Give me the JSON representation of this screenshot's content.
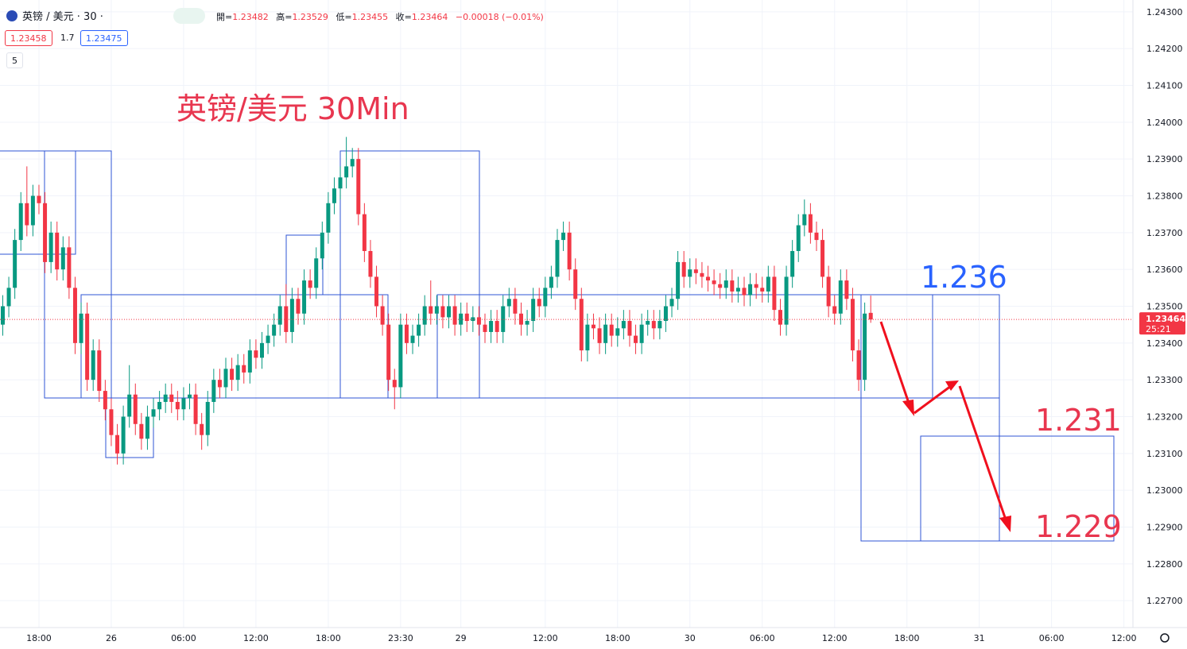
{
  "header": {
    "symbol": "英镑 / 美元 · 30 ·",
    "ohlc_labels": [
      "開=",
      "高=",
      "低=",
      "收="
    ],
    "change": "−0.00018 (−0.01%)",
    "sell": "1.23458",
    "spread": "1.7",
    "buy": "1.23475",
    "indicator_count": "5"
  },
  "chart_data": {
    "type": "candlestick",
    "up_color": "#089981",
    "down_color": "#f23645",
    "grid": true,
    "xlim": [
      -0.46,
      187.5
    ],
    "xticks": [
      {
        "value": 6,
        "label": "18:00"
      },
      {
        "value": 18,
        "label": "26"
      },
      {
        "value": 30,
        "label": "06:00"
      },
      {
        "value": 42,
        "label": "12:00"
      },
      {
        "value": 54,
        "label": "18:00"
      },
      {
        "value": 66,
        "label": "23:30"
      },
      {
        "value": 76,
        "label": "29"
      },
      {
        "value": 90,
        "label": "12:00"
      },
      {
        "value": 102,
        "label": "18:00"
      },
      {
        "value": 114,
        "label": "30"
      },
      {
        "value": 126,
        "label": "06:00"
      },
      {
        "value": 138,
        "label": "12:00"
      },
      {
        "value": 150,
        "label": "18:00"
      },
      {
        "value": 162,
        "label": "31"
      },
      {
        "value": 174,
        "label": "06:00"
      },
      {
        "value": 186,
        "label": "12:00"
      }
    ],
    "ylim": [
      1.22627,
      1.24332
    ],
    "yticks": [
      {
        "value": 1.227,
        "label": "1.22700"
      },
      {
        "value": 1.228,
        "label": "1.22800"
      },
      {
        "value": 1.229,
        "label": "1.22900"
      },
      {
        "value": 1.23,
        "label": "1.23000"
      },
      {
        "value": 1.231,
        "label": "1.23100"
      },
      {
        "value": 1.232,
        "label": "1.23200"
      },
      {
        "value": 1.233,
        "label": "1.23300"
      },
      {
        "value": 1.234,
        "label": "1.23400"
      },
      {
        "value": 1.235,
        "label": "1.23500"
      },
      {
        "value": 1.236,
        "label": "1.23600"
      },
      {
        "value": 1.237,
        "label": "1.23700"
      },
      {
        "value": 1.238,
        "label": "1.23800"
      },
      {
        "value": 1.239,
        "label": "1.23900"
      },
      {
        "value": 1.24,
        "label": "1.24000"
      },
      {
        "value": 1.241,
        "label": "1.24100"
      },
      {
        "value": 1.242,
        "label": "1.24200"
      },
      {
        "value": 1.243,
        "label": "1.24300"
      }
    ],
    "open": [
      1.2345,
      1.235,
      1.2355,
      1.2368,
      1.2378,
      1.2372,
      1.238,
      1.2378,
      1.2362,
      1.237,
      1.236,
      1.2366,
      1.2355,
      1.234,
      1.2348,
      1.233,
      1.2338,
      1.2327,
      1.2322,
      1.2315,
      1.231,
      1.232,
      1.2326,
      1.2318,
      1.2314,
      1.232,
      1.2322,
      1.2324,
      1.2326,
      1.2324,
      1.2322,
      1.2325,
      1.2326,
      1.2318,
      1.2315,
      1.2324,
      1.233,
      1.2328,
      1.2333,
      1.233,
      1.2334,
      1.2332,
      1.2338,
      1.2336,
      1.234,
      1.2342,
      1.2345,
      1.235,
      1.2343,
      1.2352,
      1.2348,
      1.2357,
      1.2355,
      1.2363,
      1.237,
      1.2378,
      1.2382,
      1.2385,
      1.2388,
      1.239,
      1.2375,
      1.2365,
      1.2358,
      1.235,
      1.2345,
      1.233,
      1.2328,
      1.2345,
      1.234,
      1.2342,
      1.2345,
      1.235,
      1.2348,
      1.235,
      1.2347,
      1.235,
      1.2345,
      1.2348,
      1.2346,
      1.2347,
      1.2345,
      1.2343,
      1.2346,
      1.2343,
      1.235,
      1.2352,
      1.2348,
      1.2345,
      1.2346,
      1.2352,
      1.235,
      1.2355,
      1.2358,
      1.2368,
      1.237,
      1.236,
      1.2352,
      1.2338,
      1.2345,
      1.2344,
      1.234,
      1.2345,
      1.2342,
      1.2344,
      1.2346,
      1.2342,
      1.234,
      1.2345,
      1.2346,
      1.2344,
      1.2346,
      1.235,
      1.2352,
      1.2362,
      1.2358,
      1.236,
      1.2359,
      1.2358,
      1.2357,
      1.2356,
      1.2355,
      1.2357,
      1.2354,
      1.2355,
      1.2353,
      1.2356,
      1.2355,
      1.2354,
      1.2358,
      1.2349,
      1.2345,
      1.2358,
      1.2365,
      1.2372,
      1.2375,
      1.237,
      1.2368,
      1.2358,
      1.235,
      1.2348,
      1.2357,
      1.2352,
      1.2338,
      1.233,
      1.23482
    ],
    "high": [
      1.2353,
      1.2358,
      1.2371,
      1.2381,
      1.2388,
      1.2383,
      1.2383,
      1.2381,
      1.2373,
      1.2373,
      1.2369,
      1.2369,
      1.2358,
      1.2351,
      1.2351,
      1.2341,
      1.2341,
      1.233,
      1.2325,
      1.2318,
      1.2323,
      1.2334,
      1.2329,
      1.2321,
      1.2323,
      1.2325,
      1.2327,
      1.2329,
      1.2329,
      1.2327,
      1.2328,
      1.2329,
      1.2329,
      1.2321,
      1.2327,
      1.2333,
      1.2333,
      1.2336,
      1.2336,
      1.2337,
      1.2337,
      1.2341,
      1.2341,
      1.2343,
      1.2345,
      1.2348,
      1.2353,
      1.2356,
      1.2355,
      1.2355,
      1.236,
      1.236,
      1.2366,
      1.2373,
      1.2381,
      1.2385,
      1.2388,
      1.2396,
      1.2393,
      1.2393,
      1.2378,
      1.2368,
      1.2361,
      1.2353,
      1.2348,
      1.2333,
      1.2348,
      1.2348,
      1.2345,
      1.2348,
      1.2353,
      1.2357,
      1.2353,
      1.2353,
      1.2353,
      1.2353,
      1.2351,
      1.2351,
      1.235,
      1.235,
      1.2348,
      1.2349,
      1.2349,
      1.2353,
      1.2355,
      1.2355,
      1.2351,
      1.2349,
      1.2355,
      1.2355,
      1.2358,
      1.2361,
      1.2371,
      1.2373,
      1.2373,
      1.2363,
      1.2355,
      1.2348,
      1.2348,
      1.2347,
      1.2348,
      1.2348,
      1.2347,
      1.2349,
      1.2349,
      1.2345,
      1.2348,
      1.2349,
      1.2349,
      1.2349,
      1.2353,
      1.2355,
      1.2365,
      1.2365,
      1.2363,
      1.2363,
      1.2362,
      1.2361,
      1.236,
      1.2359,
      1.236,
      1.236,
      1.2358,
      1.2358,
      1.2359,
      1.2359,
      1.2358,
      1.2361,
      1.2361,
      1.2352,
      1.2361,
      1.2368,
      1.2375,
      1.2379,
      1.2378,
      1.2373,
      1.2371,
      1.2361,
      1.2353,
      1.236,
      1.236,
      1.2355,
      1.2341,
      1.2351,
      1.23529
    ],
    "low": [
      1.2342,
      1.2347,
      1.2352,
      1.2365,
      1.2369,
      1.2369,
      1.2375,
      1.2359,
      1.2359,
      1.2357,
      1.2357,
      1.2352,
      1.2337,
      1.2337,
      1.2327,
      1.2327,
      1.2324,
      1.2319,
      1.2312,
      1.2307,
      1.2307,
      1.2317,
      1.2315,
      1.2311,
      1.2311,
      1.2317,
      1.2319,
      1.2321,
      1.2321,
      1.2319,
      1.2319,
      1.2322,
      1.2315,
      1.2311,
      1.2312,
      1.2321,
      1.2325,
      1.2325,
      1.2327,
      1.2327,
      1.2329,
      1.2329,
      1.2333,
      1.2333,
      1.2337,
      1.2339,
      1.2342,
      1.234,
      1.234,
      1.2345,
      1.2345,
      1.2352,
      1.2352,
      1.236,
      1.2367,
      1.2375,
      1.2379,
      1.2382,
      1.2385,
      1.2372,
      1.2362,
      1.2355,
      1.2347,
      1.2342,
      1.2327,
      1.2322,
      1.2325,
      1.2337,
      1.2337,
      1.2339,
      1.2342,
      1.2345,
      1.2345,
      1.2344,
      1.2344,
      1.2342,
      1.2342,
      1.2343,
      1.2343,
      1.2342,
      1.234,
      1.234,
      1.234,
      1.234,
      1.2347,
      1.2345,
      1.2342,
      1.2342,
      1.2343,
      1.2347,
      1.2347,
      1.2352,
      1.2355,
      1.2365,
      1.2357,
      1.2349,
      1.2335,
      1.2335,
      1.2341,
      1.2337,
      1.2337,
      1.2339,
      1.2339,
      1.2341,
      1.2339,
      1.2337,
      1.2337,
      1.2342,
      1.2341,
      1.2341,
      1.2343,
      1.2347,
      1.2349,
      1.2355,
      1.2355,
      1.2356,
      1.2355,
      1.2354,
      1.2353,
      1.2352,
      1.2352,
      1.2351,
      1.2351,
      1.235,
      1.235,
      1.2352,
      1.2351,
      1.2351,
      1.2346,
      1.2342,
      1.2342,
      1.2355,
      1.2362,
      1.2369,
      1.2367,
      1.2365,
      1.2355,
      1.2347,
      1.2345,
      1.2345,
      1.2349,
      1.2335,
      1.2327,
      1.2327,
      1.23455
    ],
    "close": [
      1.235,
      1.2355,
      1.2368,
      1.2378,
      1.2372,
      1.238,
      1.2378,
      1.2362,
      1.237,
      1.236,
      1.2366,
      1.2355,
      1.234,
      1.2348,
      1.233,
      1.2338,
      1.2327,
      1.2322,
      1.2315,
      1.231,
      1.232,
      1.2326,
      1.2318,
      1.2314,
      1.232,
      1.2322,
      1.2324,
      1.2326,
      1.2324,
      1.2322,
      1.2325,
      1.2326,
      1.2318,
      1.2315,
      1.2324,
      1.233,
      1.2328,
      1.2333,
      1.233,
      1.2334,
      1.2332,
      1.2338,
      1.2336,
      1.234,
      1.2342,
      1.2345,
      1.235,
      1.2343,
      1.2352,
      1.2348,
      1.2357,
      1.2355,
      1.2363,
      1.237,
      1.2378,
      1.2382,
      1.2385,
      1.2388,
      1.239,
      1.2375,
      1.2365,
      1.2358,
      1.235,
      1.2345,
      1.233,
      1.2328,
      1.2345,
      1.234,
      1.2342,
      1.2345,
      1.235,
      1.2348,
      1.235,
      1.2347,
      1.235,
      1.2345,
      1.2348,
      1.2346,
      1.2347,
      1.2345,
      1.2343,
      1.2346,
      1.2343,
      1.235,
      1.2352,
      1.2348,
      1.2345,
      1.2346,
      1.2352,
      1.235,
      1.2355,
      1.2358,
      1.2368,
      1.237,
      1.236,
      1.2352,
      1.2338,
      1.2345,
      1.2344,
      1.234,
      1.2345,
      1.2342,
      1.2344,
      1.2346,
      1.2342,
      1.234,
      1.2345,
      1.2346,
      1.2344,
      1.2346,
      1.235,
      1.2352,
      1.2362,
      1.2358,
      1.236,
      1.2359,
      1.2358,
      1.2357,
      1.2356,
      1.2355,
      1.2357,
      1.2354,
      1.2355,
      1.2353,
      1.2356,
      1.2355,
      1.2354,
      1.2358,
      1.2349,
      1.2345,
      1.2358,
      1.2365,
      1.2372,
      1.2375,
      1.237,
      1.2368,
      1.2358,
      1.235,
      1.2348,
      1.2357,
      1.2352,
      1.2338,
      1.233,
      1.2348,
      1.23464
    ],
    "countdown": "25:21",
    "annotations": [
      "英镑/美元 30Min",
      "1.236",
      "1.231",
      "1.229"
    ]
  }
}
